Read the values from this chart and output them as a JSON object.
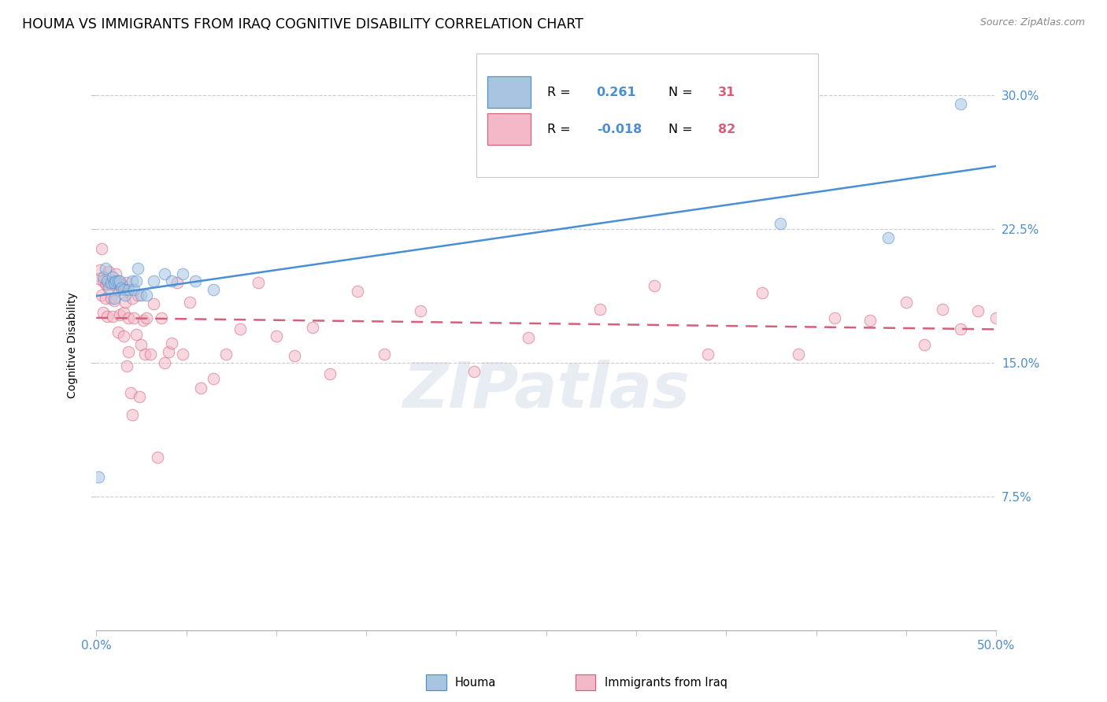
{
  "title": "HOUMA VS IMMIGRANTS FROM IRAQ COGNITIVE DISABILITY CORRELATION CHART",
  "source": "Source: ZipAtlas.com",
  "ylabel": "Cognitive Disability",
  "watermark": "ZIPatlas",
  "xlim": [
    0.0,
    0.5
  ],
  "ylim": [
    0.0,
    0.32
  ],
  "xticks": [
    0.0,
    0.05,
    0.1,
    0.15,
    0.2,
    0.25,
    0.3,
    0.35,
    0.4,
    0.45,
    0.5
  ],
  "xtick_show": [
    0.0,
    0.5
  ],
  "xtick_labels_show": [
    "0.0%",
    "50.0%"
  ],
  "yticks": [
    0.075,
    0.15,
    0.225,
    0.3
  ],
  "ytick_labels": [
    "7.5%",
    "15.0%",
    "22.5%",
    "30.0%"
  ],
  "houma_color": "#a8c4e0",
  "iraq_color": "#f4b8c8",
  "houma_line_color": "#4a8fd4",
  "iraq_line_color": "#d4607a",
  "houma_R": 0.261,
  "houma_N": 31,
  "iraq_R": -0.018,
  "iraq_N": 82,
  "legend_R_color": "#4a8fd4",
  "legend_N_color": "#d4607a",
  "houma_x": [
    0.001,
    0.004,
    0.005,
    0.006,
    0.007,
    0.008,
    0.009,
    0.01,
    0.01,
    0.011,
    0.012,
    0.013,
    0.014,
    0.015,
    0.016,
    0.018,
    0.02,
    0.021,
    0.022,
    0.023,
    0.025,
    0.028,
    0.032,
    0.038,
    0.042,
    0.048,
    0.055,
    0.065,
    0.38,
    0.44,
    0.48
  ],
  "houma_y": [
    0.086,
    0.198,
    0.203,
    0.196,
    0.192,
    0.195,
    0.198,
    0.186,
    0.195,
    0.196,
    0.196,
    0.196,
    0.192,
    0.191,
    0.188,
    0.191,
    0.196,
    0.191,
    0.196,
    0.203,
    0.188,
    0.188,
    0.196,
    0.2,
    0.196,
    0.2,
    0.196,
    0.191,
    0.228,
    0.22,
    0.295
  ],
  "iraq_x": [
    0.001,
    0.002,
    0.003,
    0.003,
    0.004,
    0.004,
    0.005,
    0.005,
    0.006,
    0.006,
    0.007,
    0.007,
    0.008,
    0.008,
    0.009,
    0.009,
    0.01,
    0.01,
    0.01,
    0.011,
    0.011,
    0.012,
    0.012,
    0.013,
    0.013,
    0.014,
    0.015,
    0.015,
    0.016,
    0.016,
    0.017,
    0.017,
    0.018,
    0.018,
    0.019,
    0.02,
    0.02,
    0.021,
    0.022,
    0.023,
    0.024,
    0.025,
    0.026,
    0.027,
    0.028,
    0.03,
    0.032,
    0.034,
    0.036,
    0.038,
    0.04,
    0.042,
    0.045,
    0.048,
    0.052,
    0.058,
    0.065,
    0.072,
    0.08,
    0.09,
    0.1,
    0.11,
    0.12,
    0.13,
    0.145,
    0.16,
    0.18,
    0.21,
    0.24,
    0.28,
    0.31,
    0.34,
    0.37,
    0.39,
    0.41,
    0.43,
    0.45,
    0.46,
    0.47,
    0.48,
    0.49,
    0.5
  ],
  "iraq_y": [
    0.197,
    0.202,
    0.214,
    0.188,
    0.196,
    0.178,
    0.194,
    0.186,
    0.194,
    0.176,
    0.201,
    0.195,
    0.194,
    0.186,
    0.195,
    0.176,
    0.185,
    0.194,
    0.195,
    0.2,
    0.194,
    0.191,
    0.167,
    0.194,
    0.177,
    0.194,
    0.178,
    0.165,
    0.184,
    0.191,
    0.148,
    0.195,
    0.156,
    0.175,
    0.133,
    0.186,
    0.121,
    0.175,
    0.166,
    0.188,
    0.131,
    0.16,
    0.174,
    0.155,
    0.175,
    0.155,
    0.183,
    0.097,
    0.175,
    0.15,
    0.156,
    0.161,
    0.195,
    0.155,
    0.184,
    0.136,
    0.141,
    0.155,
    0.169,
    0.195,
    0.165,
    0.154,
    0.17,
    0.144,
    0.19,
    0.155,
    0.179,
    0.145,
    0.164,
    0.18,
    0.193,
    0.155,
    0.189,
    0.155,
    0.175,
    0.174,
    0.184,
    0.16,
    0.18,
    0.169,
    0.179,
    0.175
  ],
  "background_color": "#ffffff",
  "grid_color": "#cccccc",
  "title_fontsize": 12.5,
  "axis_label_fontsize": 10,
  "tick_fontsize": 11,
  "dot_size": 110,
  "dot_alpha": 0.55,
  "line_width": 1.8
}
